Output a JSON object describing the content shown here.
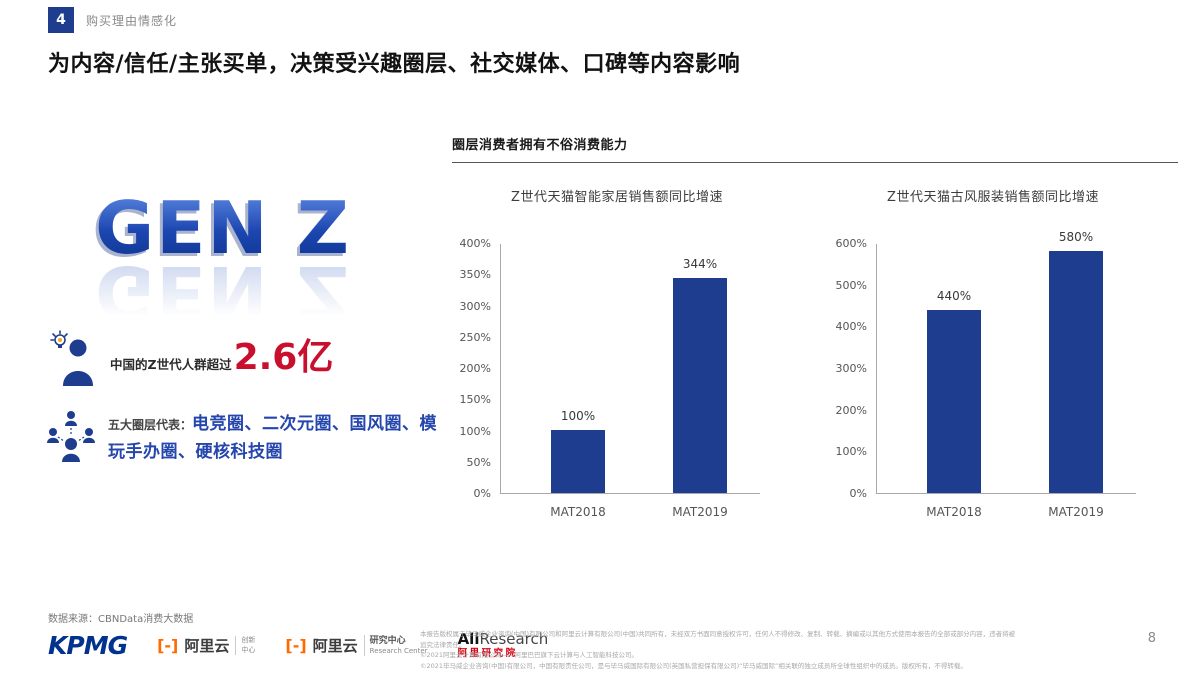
{
  "colors": {
    "primary_blue": "#1F3D8F",
    "genz_blue": "#1c46ae",
    "stat_red": "#C8102E",
    "circle_text_blue": "#2446ad",
    "kpmg_blue": "#00338D",
    "ali_orange": "#FF6A00",
    "aliresearch_red": "#D7000F"
  },
  "kicker": {
    "number": "4",
    "label": "购买理由情感化"
  },
  "title": "为内容/信任/主张买单，决策受兴趣圈层、社交媒体、口碑等内容影响",
  "left": {
    "genz": "GEN Z",
    "stat_prefix": "中国的Z世代人群超过",
    "stat_value": "2.6亿",
    "circles_label": "五大圈层代表：",
    "circles_value": "电竞圈、二次元圈、国风圈、模玩手办圈、硬核科技圈"
  },
  "charts_header": "圈层消费者拥有不俗消费能力",
  "chart_data": [
    {
      "type": "bar",
      "title": "Z世代天猫智能家居销售额同比增速",
      "categories": [
        "MAT2018",
        "MAT2019"
      ],
      "values": [
        100,
        344
      ],
      "value_labels": [
        "100%",
        "344%"
      ],
      "ylim": [
        0,
        400
      ],
      "ytick_step": 50,
      "ytick_labels": [
        "0%",
        "50%",
        "100%",
        "150%",
        "200%",
        "250%",
        "300%",
        "350%",
        "400%"
      ],
      "bar_color": "#1F3D8F",
      "grid": false,
      "legend": false
    },
    {
      "type": "bar",
      "title": "Z世代天猫古风服装销售额同比增速",
      "categories": [
        "MAT2018",
        "MAT2019"
      ],
      "values": [
        440,
        580
      ],
      "value_labels": [
        "440%",
        "580%"
      ],
      "ylim": [
        0,
        600
      ],
      "ytick_step": 100,
      "ytick_labels": [
        "0%",
        "100%",
        "200%",
        "300%",
        "400%",
        "500%",
        "600%"
      ],
      "bar_color": "#1F3D8F",
      "grid": false,
      "legend": false
    }
  ],
  "footer": {
    "source": "数据来源：CBNData消费大数据",
    "logos": {
      "kpmg": "KPMG",
      "alicloud1": {
        "bracket": "[-]",
        "name": "阿里云",
        "sub1": "创新",
        "sub2": "中心"
      },
      "alicloud2": {
        "bracket": "[-]",
        "name": "阿里云",
        "sub1": "研究中心",
        "sub2": "Research Center"
      },
      "aliresearch": {
        "en_bold": "Ali",
        "en_rest": "Research",
        "cn": "阿里研究院"
      }
    },
    "disclaimer": [
      "本报告版权属于毕马威企业咨询(中国)有限公司和阿里云计算有限公司(中国)共同所有，未经双方书面同意授权许可，任何人不得修改、复制、转载、摘编或以其他方式使用本报告的全部或部分内容，违者将被追究法律责任。",
      "©2021阿里云计算有限公司——阿里巴巴旗下云计算与人工智能科技公司。",
      "©2021毕马威企业咨询(中国)有限公司，中国有限责任公司，是与毕马威国际有限公司(英国私营担保有限公司)“毕马威国际”相关联的独立成员所全球性组织中的成员。版权所有，不得转载。"
    ],
    "page_number": "8"
  }
}
